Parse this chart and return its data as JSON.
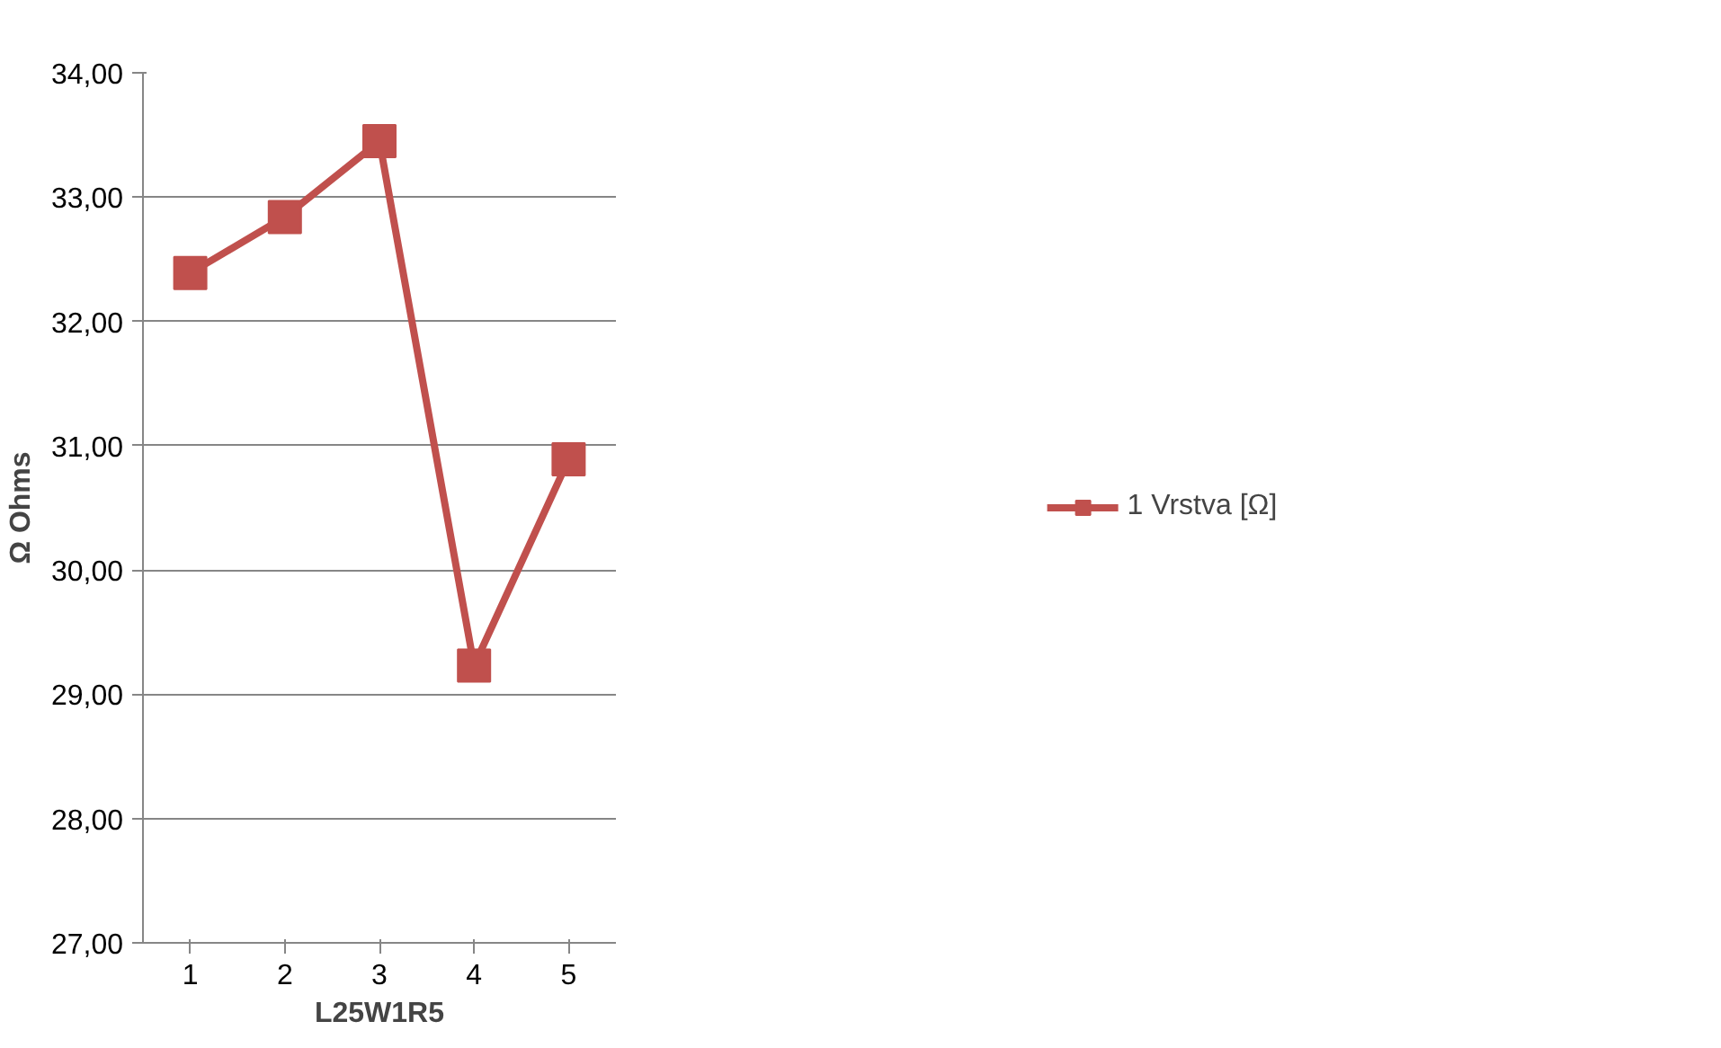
{
  "chart_data": {
    "type": "line",
    "xlabel": "L25W1R5",
    "ylabel": "Ω Ohms",
    "categories": [
      "1",
      "2",
      "3",
      "4",
      "5"
    ],
    "series": [
      {
        "name": "1 Vrstva [Ω]",
        "color": "#c0504d",
        "values": [
          32.39,
          32.84,
          33.45,
          29.23,
          30.89
        ]
      }
    ],
    "ylim": [
      27,
      34
    ],
    "yticks": [
      {
        "value": 27,
        "label": "27,00"
      },
      {
        "value": 28,
        "label": "28,00"
      },
      {
        "value": 29,
        "label": "29,00"
      },
      {
        "value": 30,
        "label": "30,00"
      },
      {
        "value": 31,
        "label": "31,00"
      },
      {
        "value": 32,
        "label": "32,00"
      },
      {
        "value": 33,
        "label": "33,00"
      },
      {
        "value": 34,
        "label": "34,00"
      }
    ],
    "grid": "y",
    "legend": "right",
    "marker": "square",
    "line_style": "solid"
  }
}
